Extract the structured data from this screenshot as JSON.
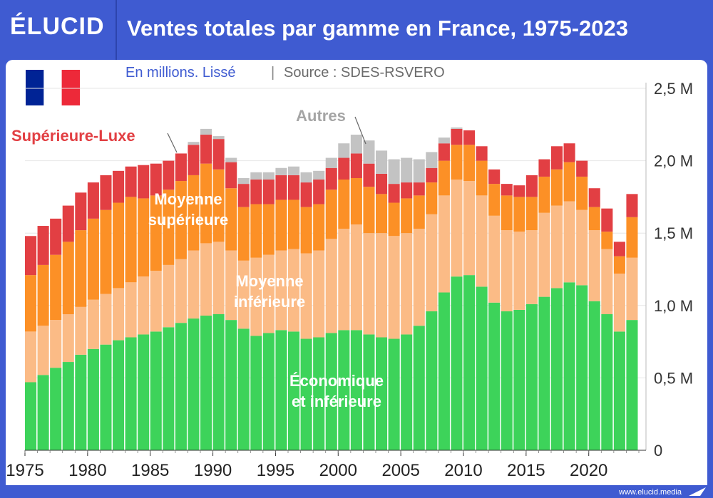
{
  "header": {
    "logo": "ÉLUCID",
    "title": "Ventes totales par gamme en France, 1975-2023"
  },
  "subtitle": {
    "unit": "En millions. Lissé",
    "separator": "|",
    "source": "Source : SDES-RSVERO"
  },
  "footer": {
    "site": "www.elucid.media"
  },
  "flag_colors": [
    "#002395",
    "#ffffff",
    "#ed2939"
  ],
  "chart_data": {
    "type": "bar",
    "stacked": true,
    "x": [
      1975,
      1976,
      1977,
      1978,
      1979,
      1980,
      1981,
      1982,
      1983,
      1984,
      1985,
      1986,
      1987,
      1988,
      1989,
      1990,
      1991,
      1992,
      1993,
      1994,
      1995,
      1996,
      1997,
      1998,
      1999,
      2000,
      2001,
      2002,
      2003,
      2004,
      2005,
      2006,
      2007,
      2008,
      2009,
      2010,
      2011,
      2012,
      2013,
      2014,
      2015,
      2016,
      2017,
      2018,
      2019,
      2020,
      2021,
      2022,
      2023
    ],
    "x_tick_labels": [
      "1975",
      "1980",
      "1985",
      "1990",
      "1995",
      "2000",
      "2005",
      "2010",
      "2015",
      "2020"
    ],
    "y_tick_labels": [
      "0",
      "0,5 M",
      "1,0 M",
      "1,5 M",
      "2,0 M",
      "2,5 M"
    ],
    "ylim": [
      0,
      2.5
    ],
    "grid": true,
    "series": [
      {
        "name": "Économique et inférieure",
        "label_lines": [
          "Économique",
          "et inférieure"
        ],
        "color": "#3dd35a",
        "values": [
          0.47,
          0.52,
          0.57,
          0.61,
          0.66,
          0.7,
          0.73,
          0.76,
          0.78,
          0.8,
          0.82,
          0.85,
          0.88,
          0.91,
          0.93,
          0.94,
          0.9,
          0.84,
          0.79,
          0.81,
          0.83,
          0.82,
          0.77,
          0.78,
          0.81,
          0.83,
          0.83,
          0.8,
          0.78,
          0.77,
          0.8,
          0.86,
          0.96,
          1.09,
          1.2,
          1.21,
          1.13,
          1.02,
          0.96,
          0.97,
          1.01,
          1.06,
          1.12,
          1.16,
          1.14,
          1.03,
          0.94,
          0.82,
          0.9
        ]
      },
      {
        "name": "Moyenne inférieure",
        "label_lines": [
          "Moyenne",
          "inférieure"
        ],
        "color": "#fbbb86",
        "values": [
          0.35,
          0.34,
          0.33,
          0.33,
          0.33,
          0.34,
          0.35,
          0.36,
          0.38,
          0.4,
          0.42,
          0.43,
          0.44,
          0.47,
          0.5,
          0.5,
          0.48,
          0.47,
          0.54,
          0.54,
          0.55,
          0.57,
          0.59,
          0.6,
          0.65,
          0.7,
          0.73,
          0.7,
          0.72,
          0.71,
          0.7,
          0.67,
          0.67,
          0.67,
          0.67,
          0.65,
          0.63,
          0.6,
          0.56,
          0.54,
          0.51,
          0.58,
          0.57,
          0.56,
          0.52,
          0.49,
          0.45,
          0.4,
          0.43
        ]
      },
      {
        "name": "Moyenne supérieure",
        "label_lines": [
          "Moyenne",
          "supérieure"
        ],
        "color": "#fc9026",
        "values": [
          0.39,
          0.42,
          0.45,
          0.5,
          0.53,
          0.56,
          0.58,
          0.59,
          0.59,
          0.54,
          0.52,
          0.52,
          0.54,
          0.52,
          0.55,
          0.5,
          0.43,
          0.37,
          0.37,
          0.35,
          0.35,
          0.34,
          0.32,
          0.32,
          0.34,
          0.34,
          0.32,
          0.32,
          0.27,
          0.23,
          0.24,
          0.23,
          0.22,
          0.24,
          0.24,
          0.25,
          0.24,
          0.22,
          0.24,
          0.24,
          0.23,
          0.25,
          0.25,
          0.27,
          0.23,
          0.16,
          0.12,
          0.12,
          0.28
        ]
      },
      {
        "name": "Supérieure-Luxe",
        "label_lines": [
          "Supérieure-Luxe"
        ],
        "color": "#e23f43",
        "values": [
          0.27,
          0.27,
          0.25,
          0.25,
          0.26,
          0.25,
          0.24,
          0.22,
          0.21,
          0.23,
          0.22,
          0.2,
          0.19,
          0.21,
          0.2,
          0.21,
          0.18,
          0.16,
          0.17,
          0.17,
          0.17,
          0.17,
          0.17,
          0.17,
          0.15,
          0.15,
          0.17,
          0.16,
          0.14,
          0.13,
          0.11,
          0.09,
          0.1,
          0.12,
          0.11,
          0.1,
          0.1,
          0.1,
          0.08,
          0.08,
          0.15,
          0.12,
          0.16,
          0.13,
          0.11,
          0.13,
          0.16,
          0.1,
          0.16
        ]
      },
      {
        "name": "Autres",
        "label_lines": [
          "Autres"
        ],
        "color": "#c3c3c3",
        "values": [
          0,
          0,
          0,
          0,
          0,
          0,
          0,
          0,
          0,
          0,
          0,
          0,
          0,
          0.02,
          0.04,
          0.02,
          0.03,
          0.04,
          0.05,
          0.05,
          0.05,
          0.06,
          0.07,
          0.06,
          0.07,
          0.1,
          0.13,
          0.16,
          0.16,
          0.17,
          0.17,
          0.16,
          0.11,
          0.04,
          0.01,
          0,
          0,
          0,
          0,
          0,
          0,
          0,
          0,
          0,
          0,
          0,
          0,
          0,
          0
        ]
      }
    ]
  }
}
